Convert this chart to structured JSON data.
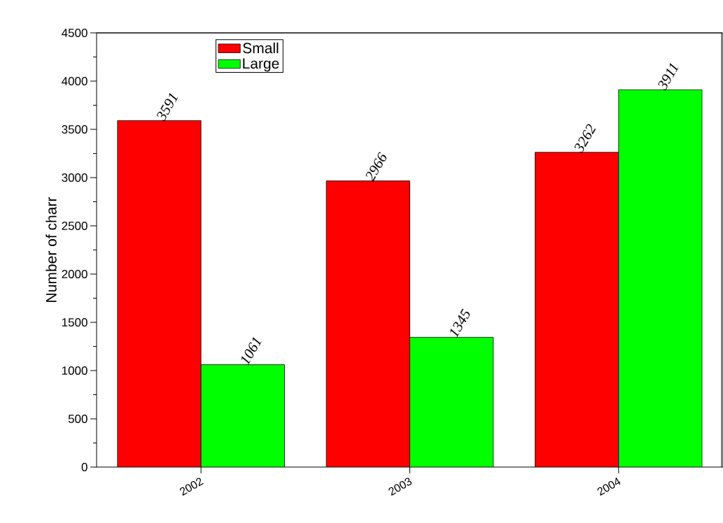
{
  "chart_data": {
    "type": "bar",
    "ylabel": "Number of charr",
    "categories": [
      "2002",
      "2003",
      "2004"
    ],
    "series": [
      {
        "name": "Small",
        "color": "#ff0000",
        "values": [
          3591,
          2966,
          3262
        ]
      },
      {
        "name": "Large",
        "color": "#00ff00",
        "values": [
          1061,
          1345,
          3911
        ]
      }
    ],
    "ylim": [
      0,
      4500
    ],
    "yticks": [
      0,
      500,
      1000,
      1500,
      2000,
      2500,
      3000,
      3500,
      4000,
      4500
    ],
    "data_labels": true,
    "legend": "top left",
    "grid": false
  }
}
